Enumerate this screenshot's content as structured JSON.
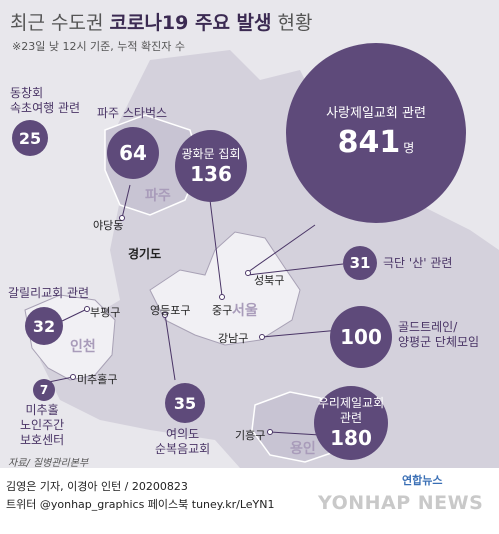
{
  "title": {
    "light1": "최근 수도권 ",
    "bold": "코로나19 주요 발생",
    "light2": " 현황"
  },
  "subtitle": "※23일 낮 12시 기준, 누적 확진자 수",
  "regions": {
    "paju": "파주",
    "gyeonggi": "경기도",
    "seoul": "서울",
    "incheon": "인천",
    "yongin": "용인"
  },
  "places": {
    "yadang": "야당동",
    "seongbuk": "성북구",
    "yeongdeungpo": "영등포구",
    "junggu": "중구",
    "bupyeong": "부평구",
    "gangnam": "강남구",
    "michuhol": "미추홀구",
    "giheung": "기흥구"
  },
  "clusters": {
    "sarang": {
      "label": "사랑제일교회 관련",
      "count": "841",
      "unit": "명"
    },
    "gwanghwamun": {
      "label": "광화문 집회",
      "count": "136"
    },
    "paju_starbucks": {
      "label": "파주 스타벅스",
      "count": "64"
    },
    "dongchang": {
      "label": "동창회\n속초여행 관련",
      "count": "25"
    },
    "galillee": {
      "label": "갈릴리교회 관련",
      "count": "32"
    },
    "michuhol_center": {
      "label": "미추홀\n노인주간\n보호센터",
      "count": "7"
    },
    "yeouido": {
      "label": "여의도\n순복음교회",
      "count": "35"
    },
    "geukdan": {
      "label": "극단 '산' 관련",
      "count": "31"
    },
    "goldtrain": {
      "label": "골드트레인/\n양평군 단체모임",
      "count": "100"
    },
    "woori": {
      "label": "우리제일교회\n관련",
      "count": "180"
    }
  },
  "source": "자료/ 질병관리본부",
  "credit": "김영은 기자, 이경아 인턴 / 20200823",
  "social": "트위터 @yonhap_graphics  페이스북 tuney.kr/LeYN1",
  "logo": "연합뉴스",
  "watermark": "YONHAP NEWS",
  "colors": {
    "circle": "#5e4a7a",
    "land": "#d4d1dc",
    "sea": "#e8e7ec",
    "region_text": "#a99cba"
  }
}
